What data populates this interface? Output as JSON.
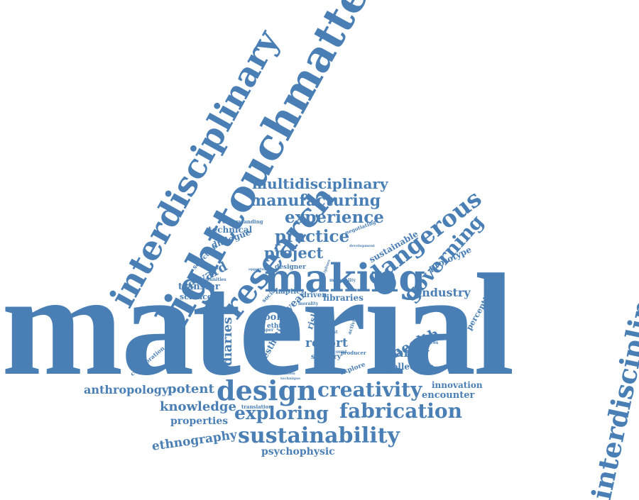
{
  "colors": {
    "word": "#4a7fb5",
    "background": "#ffffff"
  },
  "words": {
    "material": "material",
    "lighttouchmatters": "lighttouchmatters",
    "interdisciplinary_left": "interdisciplinary",
    "interdisciplinarity": "interdisciplinarity",
    "research": "research",
    "making": "making",
    "design": "design",
    "creativity": "creativity",
    "fabrication": "fabrication",
    "sustainability": "sustainability",
    "exploring": "exploring",
    "multidisciplinary": "multidisciplinary",
    "manufacturing": "manufacturing",
    "experience": "experience",
    "practice": "practice",
    "project": "project",
    "dangerous": "dangerous",
    "governing": "governing",
    "industry": "industry",
    "reward": "reward",
    "transfer": "transfer",
    "science": "science",
    "diaries": "diaries",
    "tool": "tool",
    "report": "report",
    "safety": "safety",
    "collection": "collection",
    "health": "health",
    "innovation": "innovation",
    "encounter": "encounter",
    "anthropology": "anthropology",
    "potent": "potent",
    "knowledge": "knowledge",
    "properties": "properties",
    "ethnography": "ethnography",
    "psychophysic": "psychophysic",
    "perception": "perception",
    "prototype": "prototype",
    "sustainable": "sustainable",
    "technical": "technical",
    "dialogue": "dialogue",
    "selection": "selection",
    "understanding": "understanding",
    "libraries": "libraries",
    "haptic": "haptic",
    "year": "year",
    "driven": "driven",
    "designer": "designer",
    "ethic": "ethic",
    "aesthetic": "aesthetic",
    "sensory": "sensory",
    "explore": "explore",
    "risk": "risk",
    "collaboration": "collaboration",
    "translation": "translation",
    "technique": "technique",
    "limitation": "limitation",
    "negotiating": "negotiating",
    "development": "development",
    "communities": "communities",
    "opportunity": "opportunity",
    "social": "social",
    "paper": "paper",
    "impact": "impact",
    "morality": "morality",
    "scientist": "scientist",
    "account": "account",
    "producer": "producer",
    "affordances": "affordances",
    "activities": "activities",
    "materiality": "materiality",
    "disciplines": "disciplines"
  }
}
